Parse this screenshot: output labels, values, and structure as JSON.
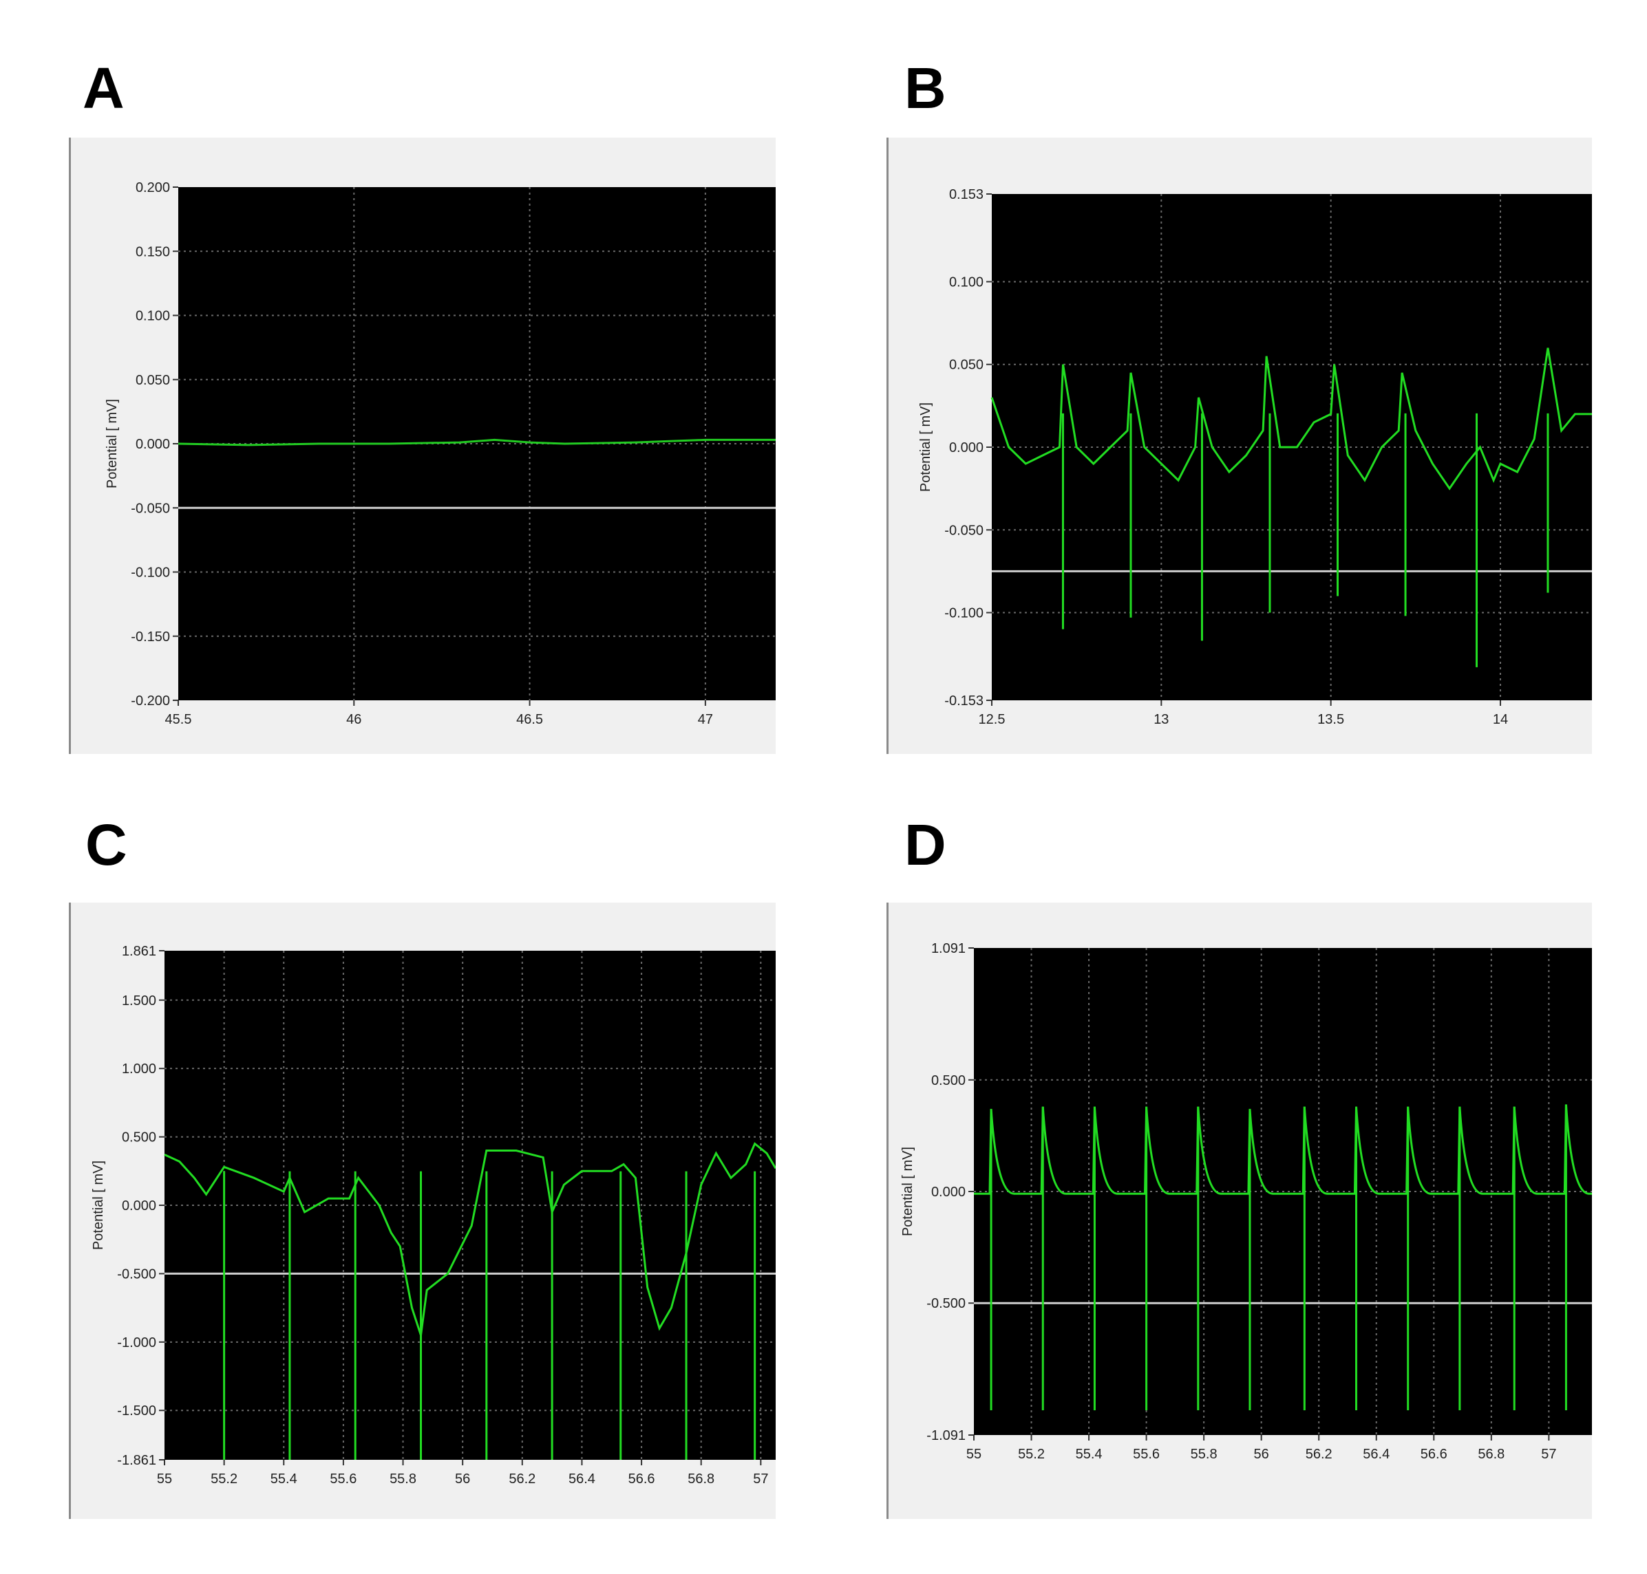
{
  "panels": [
    {
      "letter": "A"
    },
    {
      "letter": "B"
    },
    {
      "letter": "C"
    },
    {
      "letter": "D"
    }
  ],
  "chart_data": [
    {
      "type": "line",
      "ylabel": "Potential [ mV]",
      "ylim": [
        -0.2,
        0.2
      ],
      "yticks": [
        "0.200",
        "0.150",
        "0.100",
        "0.050",
        "0.000",
        "-0.050",
        "-0.100",
        "-0.150",
        "-0.200"
      ],
      "xlim": [
        45.5,
        47.2
      ],
      "xticks": [
        "45.5",
        "46",
        "46.5",
        "47"
      ],
      "threshold": -0.05,
      "grid": true,
      "series": [
        {
          "color": "#22cc22",
          "x": [
            45.5,
            45.7,
            45.9,
            46.1,
            46.3,
            46.4,
            46.5,
            46.6,
            46.8,
            47.0,
            47.2
          ],
          "y": [
            0.0,
            -0.001,
            0.0,
            0.0,
            0.001,
            0.003,
            0.001,
            0.0,
            0.001,
            0.003,
            0.003
          ]
        }
      ]
    },
    {
      "type": "line",
      "ylabel": "Potential [ mV]",
      "ylim": [
        -0.153,
        0.153
      ],
      "yticks": [
        "0.153",
        "0.100",
        "0.050",
        "0.000",
        "-0.050",
        "-0.100",
        "-0.153"
      ],
      "xlim": [
        12.5,
        14.27
      ],
      "xticks": [
        "12.5",
        "13",
        "13.5",
        "14"
      ],
      "threshold": -0.075,
      "grid": true,
      "series": [
        {
          "color": "#22dd22",
          "x": [
            12.5,
            12.55,
            12.6,
            12.65,
            12.7,
            12.71,
            12.75,
            12.8,
            12.85,
            12.9,
            12.91,
            12.95,
            13.0,
            13.05,
            13.1,
            13.11,
            13.15,
            13.2,
            13.25,
            13.3,
            13.31,
            13.35,
            13.4,
            13.45,
            13.5,
            13.51,
            13.55,
            13.6,
            13.65,
            13.7,
            13.71,
            13.75,
            13.8,
            13.85,
            13.9,
            13.94,
            13.98,
            14.0,
            14.05,
            14.1,
            14.14,
            14.18,
            14.22,
            14.27
          ],
          "y": [
            0.03,
            0.0,
            -0.01,
            -0.005,
            0.0,
            0.05,
            0.0,
            -0.01,
            0.0,
            0.01,
            0.045,
            0.0,
            -0.01,
            -0.02,
            0.0,
            0.03,
            0.0,
            -0.015,
            -0.005,
            0.01,
            0.055,
            0.0,
            0.0,
            0.015,
            0.02,
            0.05,
            -0.005,
            -0.02,
            0.0,
            0.01,
            0.045,
            0.01,
            -0.01,
            -0.025,
            -0.01,
            0.0,
            -0.02,
            -0.01,
            -0.015,
            0.005,
            0.06,
            0.01,
            0.02,
            0.02
          ]
        },
        {
          "color": "#22dd22",
          "spikes": {
            "x": [
              12.71,
              12.91,
              13.12,
              13.32,
              13.52,
              13.72,
              13.93,
              14.14
            ],
            "y": [
              -0.11,
              -0.103,
              -0.117,
              -0.1,
              -0.09,
              -0.102,
              -0.133,
              -0.088
            ]
          }
        }
      ]
    },
    {
      "type": "line",
      "ylabel": "Potential [ mV]",
      "ylim": [
        -1.861,
        1.861
      ],
      "yticks": [
        "1.861",
        "1.500",
        "1.000",
        "0.500",
        "0.000",
        "-0.500",
        "-1.000",
        "-1.500",
        "-1.861"
      ],
      "xlim": [
        55,
        57.05
      ],
      "xticks": [
        "55",
        "55.2",
        "55.4",
        "55.6",
        "55.8",
        "56",
        "56.2",
        "56.4",
        "56.6",
        "56.8",
        "57"
      ],
      "threshold": -0.5,
      "grid": true,
      "series": [
        {
          "color": "#22dd22",
          "x": [
            55,
            55.05,
            55.1,
            55.14,
            55.2,
            55.3,
            55.4,
            55.42,
            55.47,
            55.55,
            55.62,
            55.65,
            55.72,
            55.76,
            55.79,
            55.83,
            55.86,
            55.88,
            55.95,
            56.03,
            56.08,
            56.18,
            56.27,
            56.3,
            56.34,
            56.4,
            56.5,
            56.54,
            56.58,
            56.62,
            56.66,
            56.7,
            56.75,
            56.8,
            56.85,
            56.9,
            56.95,
            56.98,
            57.02,
            57.05
          ],
          "y": [
            0.37,
            0.32,
            0.2,
            0.08,
            0.28,
            0.2,
            0.1,
            0.2,
            -0.05,
            0.05,
            0.05,
            0.2,
            0.0,
            -0.2,
            -0.3,
            -0.75,
            -0.95,
            -0.62,
            -0.5,
            -0.15,
            0.4,
            0.4,
            0.35,
            -0.05,
            0.15,
            0.25,
            0.25,
            0.3,
            0.2,
            -0.6,
            -0.9,
            -0.75,
            -0.35,
            0.15,
            0.38,
            0.2,
            0.3,
            0.45,
            0.38,
            0.27
          ]
        },
        {
          "color": "#22dd22",
          "spikes": {
            "x": [
              55.2,
              55.42,
              55.64,
              55.86,
              56.08,
              56.3,
              56.53,
              56.75,
              56.98
            ],
            "y": [
              -1.861,
              -1.861,
              -1.861,
              -1.861,
              -1.861,
              -1.861,
              -1.861,
              -1.861,
              -1.861
            ]
          }
        }
      ]
    },
    {
      "type": "line",
      "ylabel": "Potential [ mV]",
      "ylim": [
        -1.091,
        1.091
      ],
      "yticks": [
        "1.091",
        "0.500",
        "0.000",
        "-0.500",
        "-1.091"
      ],
      "xlim": [
        55,
        57.15
      ],
      "xticks": [
        "55",
        "55.2",
        "55.4",
        "55.6",
        "55.8",
        "56",
        "56.2",
        "56.4",
        "56.6",
        "56.8",
        "57"
      ],
      "threshold": -0.5,
      "grid": true,
      "series": [
        {
          "color": "#22dd22",
          "baseline": -0.01,
          "beats": {
            "x": [
              55.06,
              55.24,
              55.42,
              55.6,
              55.78,
              55.96,
              56.15,
              56.33,
              56.51,
              56.69,
              56.88,
              57.06
            ],
            "peak": [
              0.37,
              0.38,
              0.38,
              0.38,
              0.38,
              0.37,
              0.38,
              0.38,
              0.38,
              0.38,
              0.38,
              0.39
            ],
            "trough": [
              -0.98,
              -0.98,
              -0.98,
              -0.98,
              -0.98,
              -0.98,
              -0.98,
              -0.98,
              -0.98,
              -0.98,
              -0.98,
              -0.98
            ]
          }
        }
      ]
    }
  ]
}
